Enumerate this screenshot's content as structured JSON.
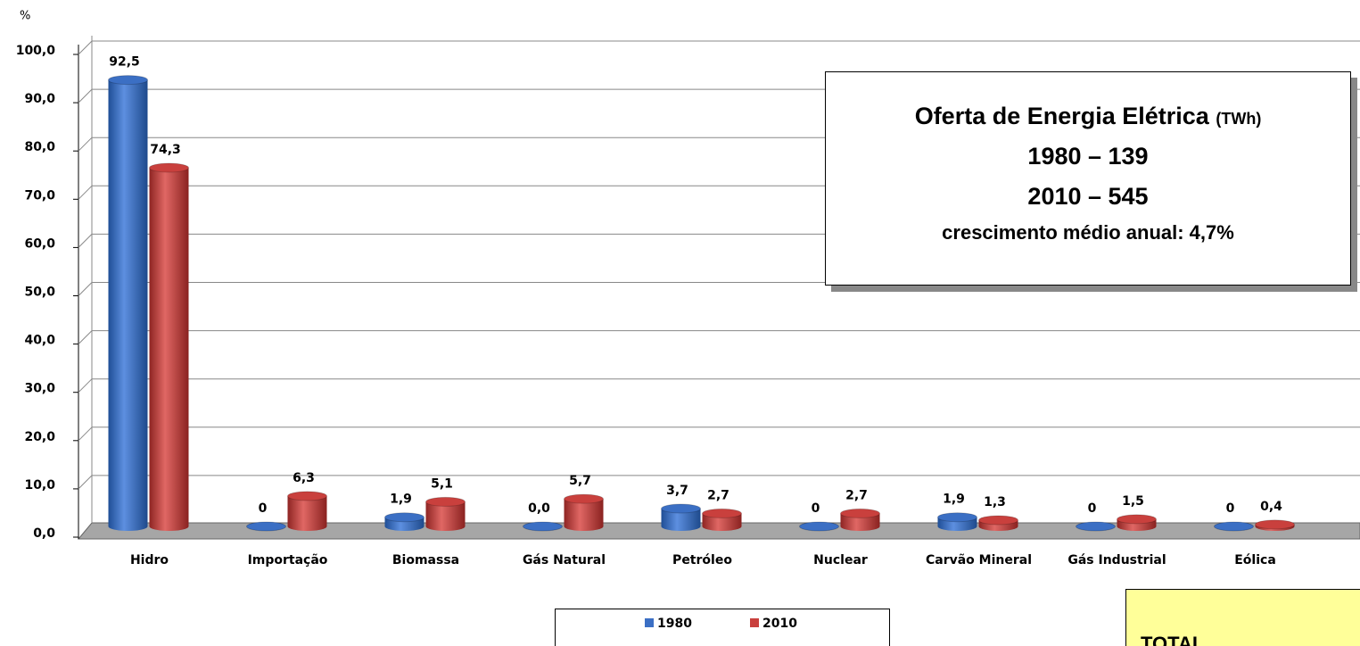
{
  "chart_data": {
    "type": "bar",
    "y_axis_label": "%",
    "categories": [
      "Hidro",
      "Importação",
      "Biomassa",
      "Gás Natural",
      "Petróleo",
      "Nuclear",
      "Carvão Mineral",
      "Gás Industrial",
      "Eólica"
    ],
    "series": [
      {
        "name": "1980",
        "color": "#3b6fc4",
        "values": [
          92.5,
          0,
          1.9,
          0.0,
          3.7,
          0,
          1.9,
          0,
          0
        ],
        "value_labels": [
          "92,5",
          "0",
          "1,9",
          "0,0",
          "3,7",
          "0",
          "1,9",
          "0",
          "0"
        ]
      },
      {
        "name": "2010",
        "color": "#c9403d",
        "values": [
          74.3,
          6.3,
          5.1,
          5.7,
          2.7,
          2.7,
          1.3,
          1.5,
          0.4
        ],
        "value_labels": [
          "74,3",
          "6,3",
          "5,1",
          "5,7",
          "2,7",
          "2,7",
          "1,3",
          "1,5",
          "0,4"
        ]
      }
    ],
    "ylim": [
      0,
      100
    ],
    "yticks": [
      {
        "value": 0,
        "label": "0,0"
      },
      {
        "value": 10,
        "label": "10,0"
      },
      {
        "value": 20,
        "label": "20,0"
      },
      {
        "value": 30,
        "label": "30,0"
      },
      {
        "value": 40,
        "label": "40,0"
      },
      {
        "value": 50,
        "label": "50,0"
      },
      {
        "value": 60,
        "label": "60,0"
      },
      {
        "value": 70,
        "label": "70,0"
      },
      {
        "value": 80,
        "label": "80,0"
      },
      {
        "value": 90,
        "label": "90,0"
      },
      {
        "value": 100,
        "label": "100,0"
      }
    ],
    "grid": true,
    "legend": "bottom"
  },
  "annotation": {
    "title": "Oferta de Energia Elétrica",
    "unit": "(TWh)",
    "lines": [
      "1980  –  139",
      "2010  –  545",
      "crescimento médio anual: 4,7%"
    ]
  },
  "total_box": {
    "label": "TOTAL"
  }
}
